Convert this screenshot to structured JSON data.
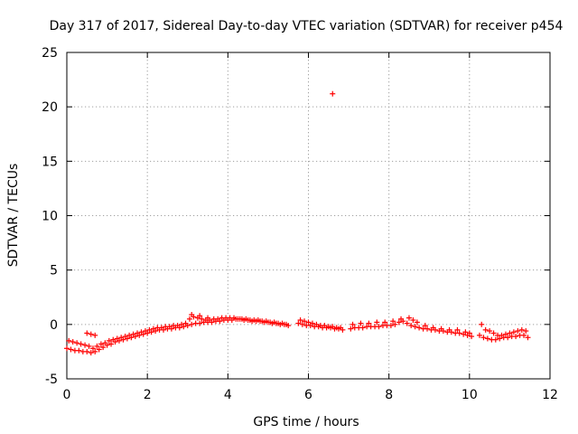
{
  "chart_data": {
    "type": "scatter",
    "title": "Day 317 of 2017, Sidereal Day-to-day VTEC variation (SDTVAR) for receiver p454",
    "xlabel": "GPS time / hours",
    "ylabel": "SDTVAR / TECUs",
    "xlim": [
      0,
      12
    ],
    "ylim": [
      -5,
      25
    ],
    "xticks": [
      0,
      2,
      4,
      6,
      8,
      10,
      12
    ],
    "yticks": [
      -5,
      0,
      5,
      10,
      15,
      20,
      25
    ],
    "grid": true,
    "marker": "plus",
    "color": "#ff0000",
    "series": [
      {
        "name": "p454",
        "x": [
          0.0,
          0.1,
          0.2,
          0.3,
          0.4,
          0.5,
          0.6,
          0.7,
          0.8,
          0.9,
          1.0,
          1.1,
          1.2,
          1.3,
          1.4,
          1.5,
          1.6,
          1.7,
          1.8,
          1.9,
          2.0,
          2.1,
          2.2,
          2.3,
          2.4,
          2.5,
          2.6,
          2.7,
          2.8,
          2.9,
          3.0,
          3.1,
          3.2,
          3.3,
          3.4,
          3.5,
          3.6,
          3.7,
          3.8,
          3.9,
          4.0,
          4.1,
          4.2,
          4.3,
          4.4,
          4.5,
          4.6,
          4.7,
          4.8,
          4.9,
          5.0,
          5.1,
          5.2,
          5.3,
          5.4,
          5.5,
          5.75,
          5.85,
          5.95,
          6.05,
          6.15,
          6.25,
          6.35,
          6.45,
          6.55,
          6.65,
          6.75,
          6.85,
          7.05,
          7.15,
          7.25,
          7.35,
          7.45,
          7.55,
          7.65,
          7.75,
          7.85,
          7.95,
          8.05,
          8.15,
          8.25,
          8.35,
          8.45,
          8.55,
          8.65,
          8.75,
          8.85,
          8.95,
          9.05,
          9.15,
          9.25,
          9.35,
          9.45,
          9.55,
          9.65,
          9.75,
          9.85,
          9.95,
          10.05,
          10.25,
          10.35,
          10.45,
          10.55,
          10.65,
          10.75,
          10.85,
          10.95,
          11.05,
          11.15,
          11.25,
          11.35,
          11.45,
          0.05,
          0.15,
          0.25,
          0.35,
          0.45,
          0.55,
          0.65,
          0.75,
          0.85,
          0.95,
          1.05,
          1.15,
          1.25,
          1.35,
          1.45,
          1.55,
          1.65,
          1.75,
          1.85,
          1.95,
          2.05,
          2.15,
          2.25,
          2.35,
          2.45,
          2.55,
          2.65,
          2.75,
          2.85,
          2.95,
          3.05,
          3.15,
          3.25,
          3.35,
          3.45,
          3.55,
          3.65,
          3.75,
          3.85,
          3.95,
          4.05,
          4.15,
          4.25,
          4.35,
          4.45,
          4.55,
          4.65,
          4.75,
          4.85,
          4.95,
          5.05,
          5.15,
          5.25,
          5.35,
          5.45,
          5.8,
          5.9,
          6.0,
          6.1,
          6.2,
          6.3,
          6.4,
          6.5,
          6.6,
          6.7,
          6.8,
          7.1,
          7.3,
          7.5,
          7.7,
          7.9,
          8.1,
          8.3,
          8.5,
          8.6,
          8.7,
          8.9,
          9.1,
          9.3,
          9.5,
          9.7,
          9.9,
          10.0,
          10.3,
          10.4,
          10.5,
          10.6,
          10.7,
          10.8,
          10.9,
          11.0,
          11.1,
          11.2,
          11.3,
          11.4,
          3.1,
          3.3,
          3.5,
          0.5,
          0.6,
          0.7,
          6.6
        ],
        "y": [
          -2.2,
          -2.3,
          -2.4,
          -2.4,
          -2.5,
          -2.5,
          -2.6,
          -2.5,
          -2.3,
          -2.1,
          -1.9,
          -1.8,
          -1.6,
          -1.5,
          -1.4,
          -1.3,
          -1.2,
          -1.1,
          -1.0,
          -0.9,
          -0.8,
          -0.7,
          -0.6,
          -0.5,
          -0.5,
          -0.4,
          -0.4,
          -0.3,
          -0.3,
          -0.2,
          -0.1,
          0.0,
          0.1,
          0.1,
          0.2,
          0.2,
          0.2,
          0.3,
          0.3,
          0.4,
          0.4,
          0.4,
          0.5,
          0.5,
          0.4,
          0.4,
          0.3,
          0.3,
          0.3,
          0.2,
          0.2,
          0.1,
          0.1,
          0.0,
          0.0,
          -0.1,
          0.1,
          0.0,
          -0.1,
          -0.1,
          -0.2,
          -0.2,
          -0.3,
          -0.3,
          -0.3,
          -0.4,
          -0.4,
          -0.5,
          -0.4,
          -0.3,
          -0.3,
          -0.3,
          -0.2,
          -0.2,
          -0.2,
          -0.2,
          -0.1,
          -0.1,
          -0.1,
          0.0,
          0.2,
          0.3,
          0.1,
          -0.1,
          -0.2,
          -0.3,
          -0.4,
          -0.4,
          -0.5,
          -0.5,
          -0.6,
          -0.6,
          -0.7,
          -0.7,
          -0.8,
          -0.8,
          -0.9,
          -1.0,
          -1.1,
          -1.0,
          -1.2,
          -1.3,
          -1.4,
          -1.4,
          -1.3,
          -1.2,
          -1.2,
          -1.1,
          -1.1,
          -1.0,
          -1.0,
          -1.2,
          -1.5,
          -1.6,
          -1.7,
          -1.8,
          -1.9,
          -2.0,
          -2.2,
          -2.0,
          -1.8,
          -1.7,
          -1.5,
          -1.4,
          -1.3,
          -1.2,
          -1.1,
          -1.0,
          -0.9,
          -0.8,
          -0.7,
          -0.6,
          -0.5,
          -0.4,
          -0.3,
          -0.3,
          -0.2,
          -0.2,
          -0.1,
          -0.1,
          0.0,
          0.1,
          0.5,
          0.7,
          0.6,
          0.5,
          0.4,
          0.4,
          0.5,
          0.5,
          0.6,
          0.6,
          0.6,
          0.6,
          0.5,
          0.5,
          0.5,
          0.4,
          0.4,
          0.4,
          0.3,
          0.3,
          0.2,
          0.2,
          0.1,
          0.1,
          0.0,
          0.4,
          0.3,
          0.2,
          0.1,
          0.0,
          -0.1,
          -0.1,
          -0.2,
          -0.2,
          -0.3,
          -0.3,
          0.0,
          0.1,
          0.1,
          0.2,
          0.2,
          0.3,
          0.5,
          0.6,
          0.4,
          0.2,
          -0.1,
          -0.3,
          -0.4,
          -0.5,
          -0.5,
          -0.7,
          -0.8,
          0.0,
          -0.5,
          -0.6,
          -0.8,
          -1.0,
          -1.0,
          -0.9,
          -0.8,
          -0.7,
          -0.6,
          -0.5,
          -0.6,
          0.9,
          0.8,
          0.6,
          -0.8,
          -0.9,
          -1.0,
          21.2
        ]
      }
    ]
  }
}
